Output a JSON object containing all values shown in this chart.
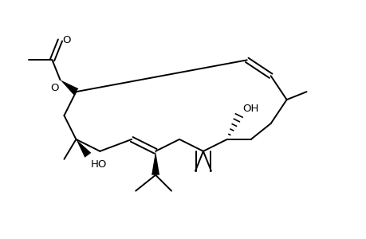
{
  "background_color": "#ffffff",
  "line_color": "#000000",
  "line_width": 1.4,
  "figsize": [
    4.6,
    3.0
  ],
  "dpi": 100,
  "xlim": [
    0,
    46
  ],
  "ylim": [
    0,
    30
  ]
}
